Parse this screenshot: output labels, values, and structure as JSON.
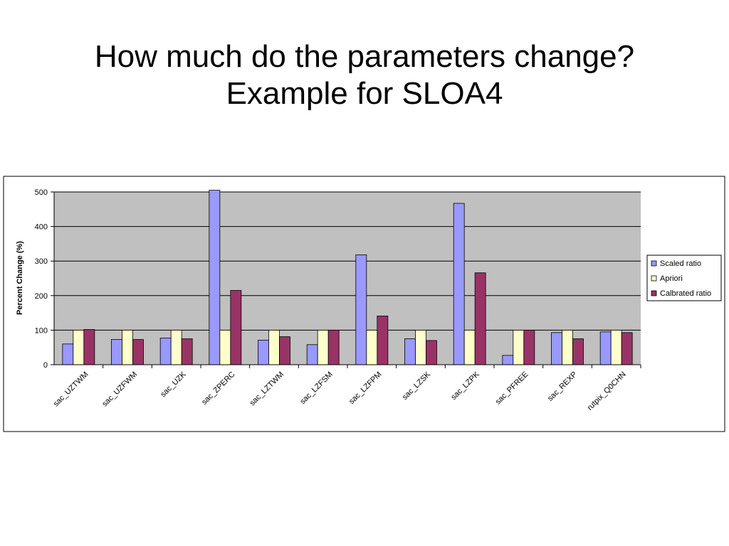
{
  "slide": {
    "title_line1": "How much do the parameters change?",
    "title_line2": "Example for SLOA4"
  },
  "chart_data": {
    "type": "bar",
    "title": "",
    "xlabel": "",
    "ylabel": "Percent Change (%)",
    "ylim": [
      0,
      500
    ],
    "yticks": [
      0,
      100,
      200,
      300,
      400,
      500
    ],
    "grid": true,
    "legend_position": "right",
    "categories": [
      "sac_UZTWM",
      "sac_UZFWM",
      "sac_UZK",
      "sac_ZPERC",
      "sac_LZTWM",
      "sac_LZFSM",
      "sac_LZFPM",
      "sac_LZSK",
      "sac_LZPK",
      "sac_PFREE",
      "sac_REXP",
      "rutpix_Q0CHN"
    ],
    "series": [
      {
        "name": "Scaled ratio",
        "color": "#9999ff",
        "values": [
          60,
          73,
          77,
          505,
          71,
          58,
          318,
          75,
          467,
          27,
          93,
          95
        ]
      },
      {
        "name": "Apriori",
        "color": "#ffffcc",
        "values": [
          100,
          100,
          100,
          100,
          100,
          100,
          100,
          100,
          100,
          100,
          100,
          100
        ]
      },
      {
        "name": "Calbrated ratio",
        "color": "#993366",
        "values": [
          102,
          73,
          75,
          215,
          81,
          100,
          141,
          70,
          266,
          100,
          75,
          93
        ]
      }
    ],
    "plot_background": "#c0c0c0"
  }
}
